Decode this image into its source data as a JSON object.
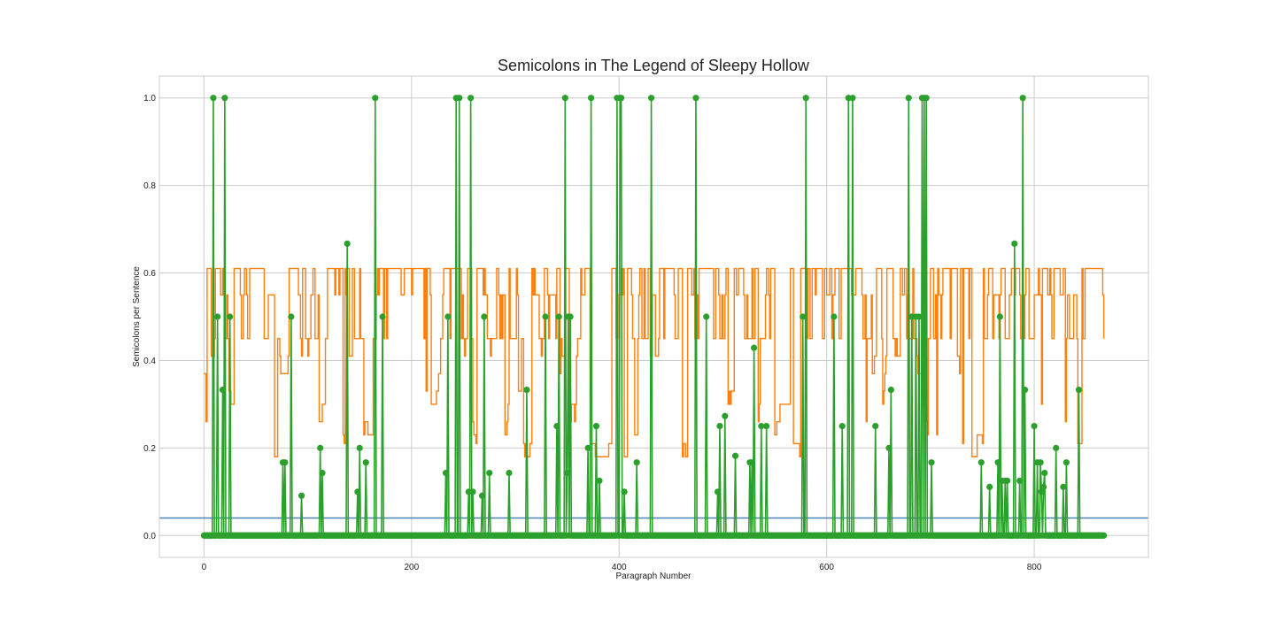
{
  "chart_data": {
    "type": "line",
    "title": "Semicolons in The Legend of Sleepy Hollow",
    "xlabel": "Paragraph Number",
    "ylabel": "Semicolons per Sentence",
    "xlim": [
      -43,
      910
    ],
    "ylim": [
      -0.05,
      1.05
    ],
    "x_ticks": [
      0,
      200,
      400,
      600,
      800
    ],
    "y_ticks": [
      0.0,
      0.2,
      0.4,
      0.6,
      0.8,
      1.0
    ],
    "grid": true,
    "colors": {
      "baseline": "#4c82b0",
      "smoothed": "#ff7f0e",
      "per_paragraph": "#2ca02c"
    },
    "series": [
      {
        "kind": "horizontal_line",
        "y": 0.04
      },
      {
        "kind": "step_line",
        "n_points": 868,
        "levels": [
          0.18,
          0.21,
          0.23,
          0.26,
          0.3,
          0.33,
          0.37,
          0.41,
          0.45,
          0.55,
          0.61
        ],
        "value_range": [
          0.16,
          0.61
        ]
      },
      {
        "kind": "line_with_markers",
        "n_points": 868,
        "baseline": 0.0,
        "nonzero_points": [
          [
            9,
            1.0
          ],
          [
            13,
            0.5
          ],
          [
            18,
            0.333
          ],
          [
            20,
            1.0
          ],
          [
            25,
            0.5
          ],
          [
            76,
            0.167
          ],
          [
            78,
            0.167
          ],
          [
            84,
            0.5
          ],
          [
            94,
            0.091
          ],
          [
            112,
            0.2
          ],
          [
            114,
            0.143
          ],
          [
            138,
            0.667
          ],
          [
            148,
            0.1
          ],
          [
            150,
            0.2
          ],
          [
            156,
            0.167
          ],
          [
            165,
            1.0
          ],
          [
            172,
            0.5
          ],
          [
            233,
            0.143
          ],
          [
            235,
            0.5
          ],
          [
            243,
            1.0
          ],
          [
            246,
            1.0
          ],
          [
            255,
            0.1
          ],
          [
            257,
            1.0
          ],
          [
            259,
            0.1
          ],
          [
            268,
            0.091
          ],
          [
            270,
            0.5
          ],
          [
            275,
            0.143
          ],
          [
            294,
            0.143
          ],
          [
            311,
            0.333
          ],
          [
            329,
            0.5
          ],
          [
            340,
            0.25
          ],
          [
            342,
            0.5
          ],
          [
            348,
            1.0
          ],
          [
            350,
            0.143
          ],
          [
            351,
            0.5
          ],
          [
            353,
            0.5
          ],
          [
            370,
            0.2
          ],
          [
            373,
            1.0
          ],
          [
            378,
            0.25
          ],
          [
            381,
            0.125
          ],
          [
            398,
            1.0
          ],
          [
            401,
            1.0
          ],
          [
            402,
            1.0
          ],
          [
            405,
            0.1
          ],
          [
            417,
            0.167
          ],
          [
            431,
            1.0
          ],
          [
            474,
            1.0
          ],
          [
            484,
            0.5
          ],
          [
            495,
            0.1
          ],
          [
            497,
            0.25
          ],
          [
            502,
            0.273
          ],
          [
            512,
            0.182
          ],
          [
            526,
            0.167
          ],
          [
            528,
            0.167
          ],
          [
            530,
            0.429
          ],
          [
            537,
            0.25
          ],
          [
            542,
            0.25
          ],
          [
            577,
            0.5
          ],
          [
            580,
            1.0
          ],
          [
            607,
            0.5
          ],
          [
            615,
            0.25
          ],
          [
            621,
            1.0
          ],
          [
            625,
            1.0
          ],
          [
            647,
            0.25
          ],
          [
            660,
            0.2
          ],
          [
            662,
            0.333
          ],
          [
            679,
            1.0
          ],
          [
            682,
            0.5
          ],
          [
            686,
            0.5
          ],
          [
            689,
            0.5
          ],
          [
            692,
            1.0
          ],
          [
            694,
            1.0
          ],
          [
            696,
            1.0
          ],
          [
            701,
            0.167
          ],
          [
            749,
            0.167
          ],
          [
            757,
            0.111
          ],
          [
            765,
            0.167
          ],
          [
            767,
            0.5
          ],
          [
            769,
            0.125
          ],
          [
            772,
            0.125
          ],
          [
            774,
            0.125
          ],
          [
            781,
            0.667
          ],
          [
            786,
            0.125
          ],
          [
            789,
            1.0
          ],
          [
            791,
            0.333
          ],
          [
            800,
            0.25
          ],
          [
            803,
            0.167
          ],
          [
            806,
            0.167
          ],
          [
            807,
            0.1
          ],
          [
            809,
            0.111
          ],
          [
            810,
            0.143
          ],
          [
            821,
            0.2
          ],
          [
            828,
            0.111
          ],
          [
            831,
            0.167
          ],
          [
            843,
            0.333
          ]
        ]
      }
    ]
  }
}
